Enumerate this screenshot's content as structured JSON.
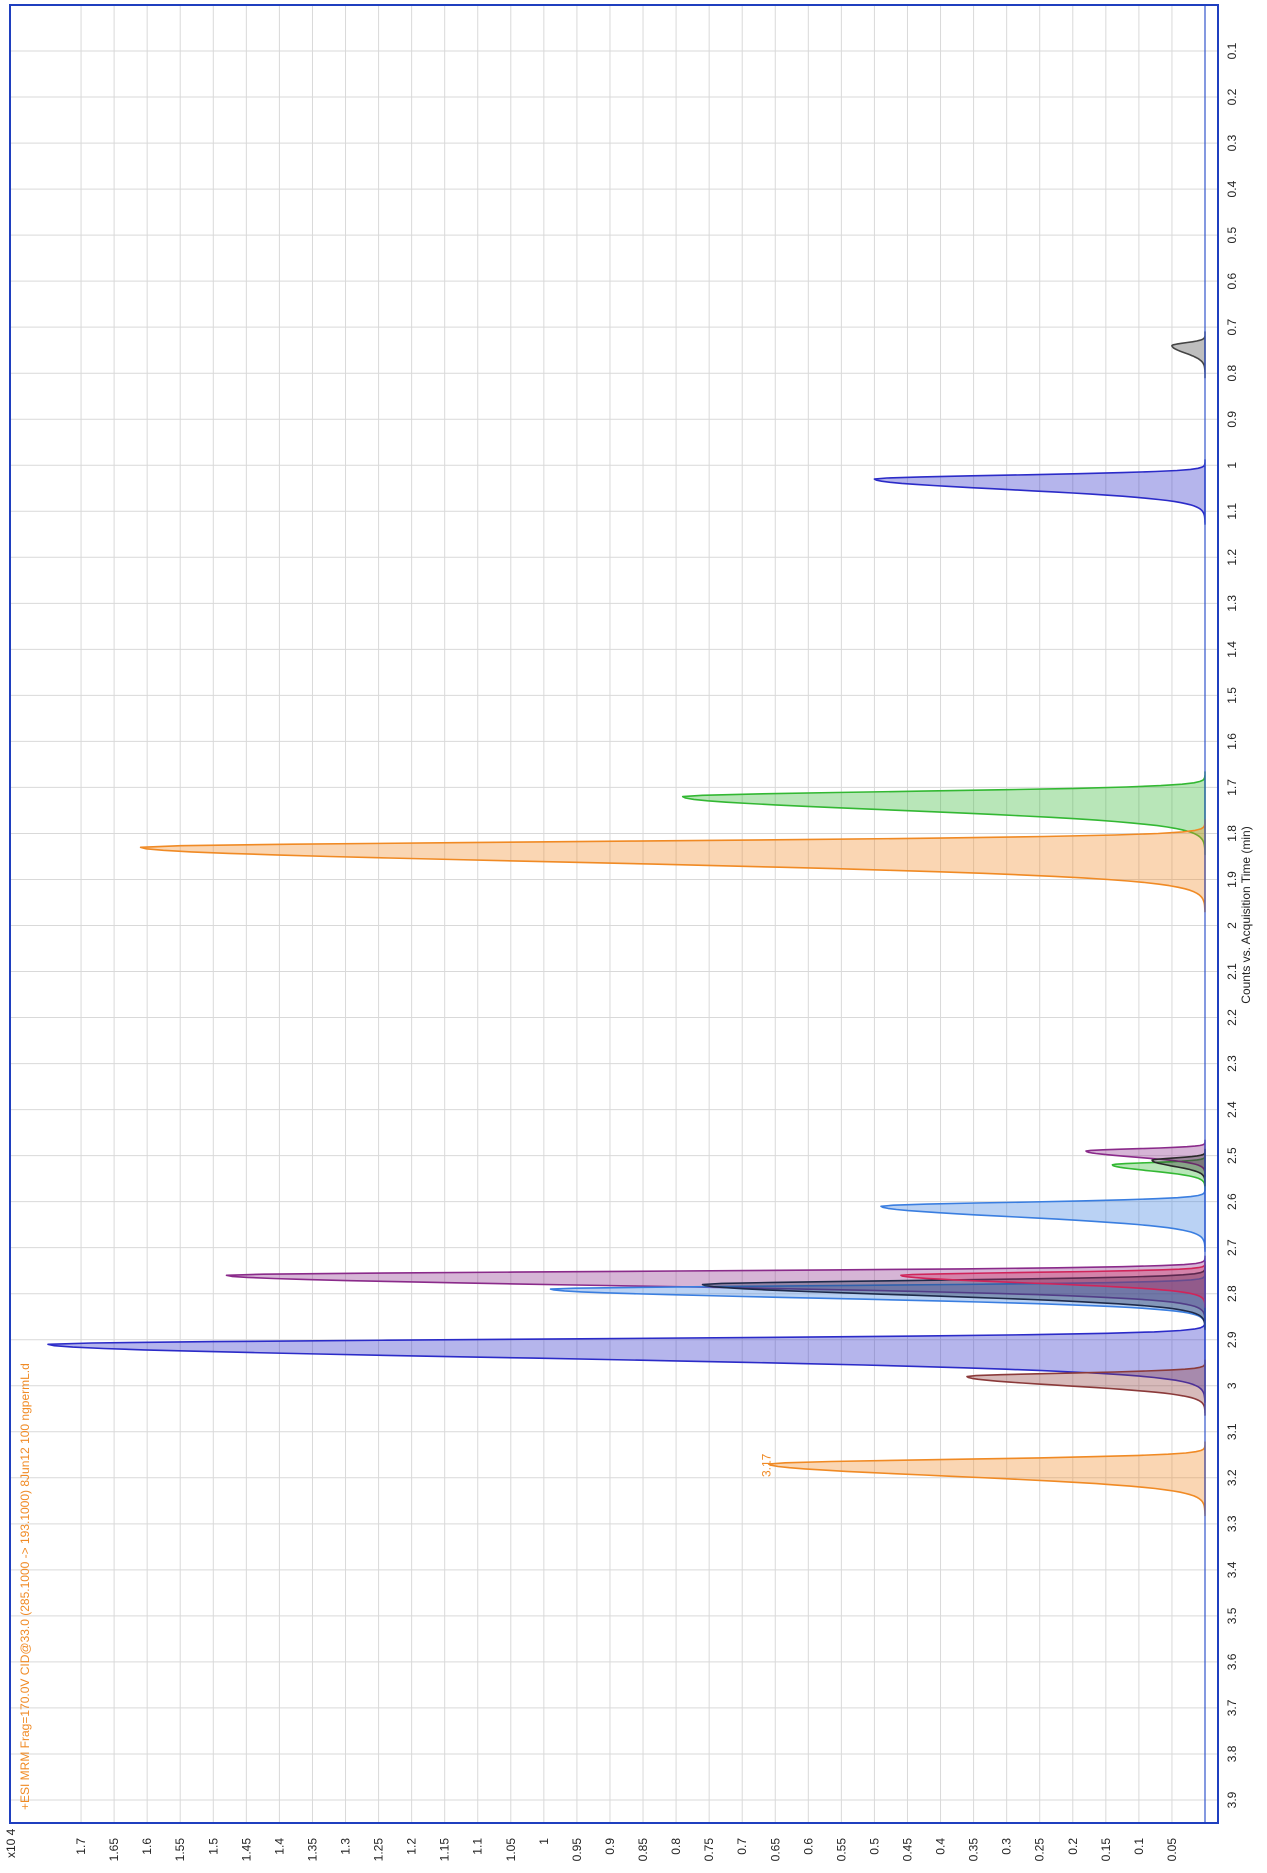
{
  "chart_data": {
    "type": "area",
    "orientation": "rotated-90-clockwise",
    "title": "+ESI MRM Frag=170.0V CID@33.0 (285.1000 -> 193.1000) 8Jun12 100 ngpermL.d",
    "xlabel": "Counts vs. Acquisition Time (min)",
    "ylabel": "",
    "y_multiplier": "x10 4",
    "xlim": [
      0,
      3.95
    ],
    "ylim": [
      0,
      1.75
    ],
    "x_ticks": [
      "0.1",
      "0.2",
      "0.3",
      "0.4",
      "0.5",
      "0.6",
      "0.7",
      "0.8",
      "0.9",
      "1",
      "1.1",
      "1.2",
      "1.3",
      "1.4",
      "1.5",
      "1.6",
      "1.7",
      "1.8",
      "1.9",
      "2",
      "2.1",
      "2.2",
      "2.3",
      "2.4",
      "2.5",
      "2.6",
      "2.7",
      "2.8",
      "2.9",
      "3",
      "3.1",
      "3.2",
      "3.3",
      "3.4",
      "3.5",
      "3.6",
      "3.7",
      "3.8",
      "3.9"
    ],
    "y_ticks": [
      "0.05",
      "0.1",
      "0.15",
      "0.2",
      "0.25",
      "0.3",
      "0.35",
      "0.4",
      "0.45",
      "0.5",
      "0.55",
      "0.6",
      "0.65",
      "0.7",
      "0.75",
      "0.8",
      "0.85",
      "0.9",
      "0.95",
      "1",
      "1.05",
      "1.1",
      "1.15",
      "1.2",
      "1.25",
      "1.3",
      "1.35",
      "1.4",
      "1.45",
      "1.5",
      "1.55",
      "1.6",
      "1.65",
      "1.7"
    ],
    "grid": true,
    "annotations": [
      {
        "text": "3.17",
        "x": 3.17,
        "y": 0.66,
        "color": "#f08a24"
      }
    ],
    "series": [
      {
        "color": "#444444",
        "peaks": [
          {
            "rt": 0.74,
            "height": 0.05,
            "width": 0.05
          }
        ]
      },
      {
        "color": "#2b2bc8",
        "peaks": [
          {
            "rt": 1.03,
            "height": 0.5,
            "width": 0.07
          },
          {
            "rt": 2.91,
            "height": 1.75,
            "width": 0.09
          }
        ]
      },
      {
        "color": "#33b833",
        "peaks": [
          {
            "rt": 1.72,
            "height": 0.79,
            "width": 0.09
          },
          {
            "rt": 2.52,
            "height": 0.14,
            "width": 0.04
          }
        ]
      },
      {
        "color": "#f08a24",
        "peaks": [
          {
            "rt": 1.83,
            "height": 1.61,
            "width": 0.1
          },
          {
            "rt": 3.17,
            "height": 0.66,
            "width": 0.08
          }
        ]
      },
      {
        "color": "#8a2a8a",
        "peaks": [
          {
            "rt": 2.49,
            "height": 0.18,
            "width": 0.04
          },
          {
            "rt": 2.76,
            "height": 1.48,
            "width": 0.07
          }
        ]
      },
      {
        "color": "#2a2a2a",
        "peaks": [
          {
            "rt": 2.51,
            "height": 0.08,
            "width": 0.04
          }
        ]
      },
      {
        "color": "#3a7ee0",
        "peaks": [
          {
            "rt": 2.61,
            "height": 0.49,
            "width": 0.07
          },
          {
            "rt": 2.79,
            "height": 0.99,
            "width": 0.06
          }
        ]
      },
      {
        "color": "#1e2a4a",
        "peaks": [
          {
            "rt": 2.78,
            "height": 0.76,
            "width": 0.07
          }
        ]
      },
      {
        "color": "#d0245a",
        "peaks": [
          {
            "rt": 2.76,
            "height": 0.46,
            "width": 0.05
          }
        ]
      },
      {
        "color": "#8b3a3a",
        "peaks": [
          {
            "rt": 2.98,
            "height": 0.36,
            "width": 0.06
          }
        ]
      }
    ],
    "colors": {
      "frame": "#1f3fbf",
      "grid": "#d9d9d9",
      "title": "#f08a24"
    }
  }
}
